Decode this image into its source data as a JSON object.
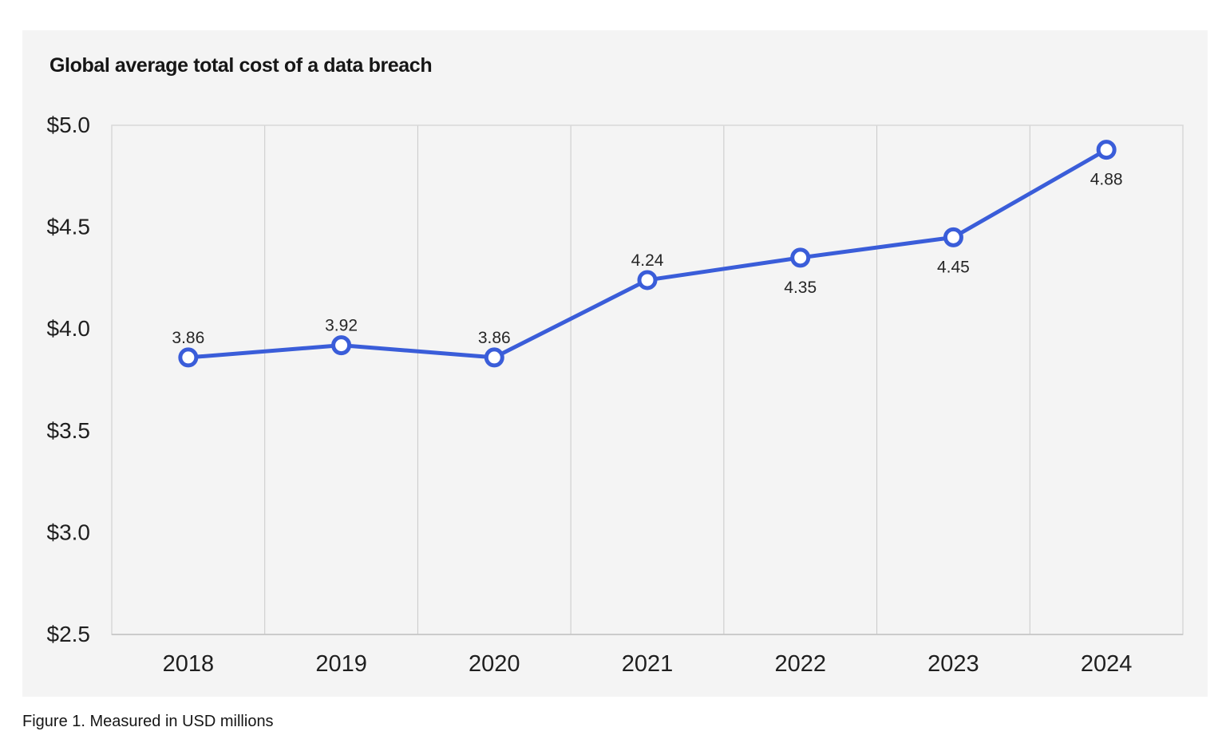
{
  "card": {
    "title": "Global average total cost of a data breach"
  },
  "caption": "Figure 1. Measured in USD millions",
  "colors": {
    "page_background": "#ffffff",
    "card_background": "#f4f4f4",
    "line": "#3a5dd9",
    "marker_fill": "#ffffff",
    "grid": "#c9c9c9",
    "plot_border": "#d8d8d8",
    "axis_line": "#c2c2c2",
    "tick_text": "#1f1f1f",
    "data_label_text": "#262626",
    "title_text": "#161616"
  },
  "chart_data": {
    "type": "line",
    "title": "Global average total cost of a data breach",
    "caption": "Figure 1. Measured in USD millions",
    "categories": [
      "2018",
      "2019",
      "2020",
      "2021",
      "2022",
      "2023",
      "2024"
    ],
    "values": [
      3.86,
      3.92,
      3.86,
      4.24,
      4.35,
      4.45,
      4.88
    ],
    "value_labels": [
      "3.86",
      "3.92",
      "3.86",
      "4.24",
      "4.35",
      "4.45",
      "4.88"
    ],
    "label_positions": [
      "above",
      "above",
      "above",
      "above",
      "below",
      "below",
      "below"
    ],
    "xlabel": "",
    "ylabel": "",
    "ylim": [
      2.5,
      5.0
    ],
    "y_tick_step": 0.5,
    "y_tick_labels": [
      "$5.0",
      "$4.5",
      "$4.0",
      "$3.5",
      "$3.0",
      "$2.5"
    ],
    "currency_prefix": "$",
    "units": "USD millions",
    "grid": "vertical-only",
    "legend": "none",
    "marker": "open-circle"
  }
}
